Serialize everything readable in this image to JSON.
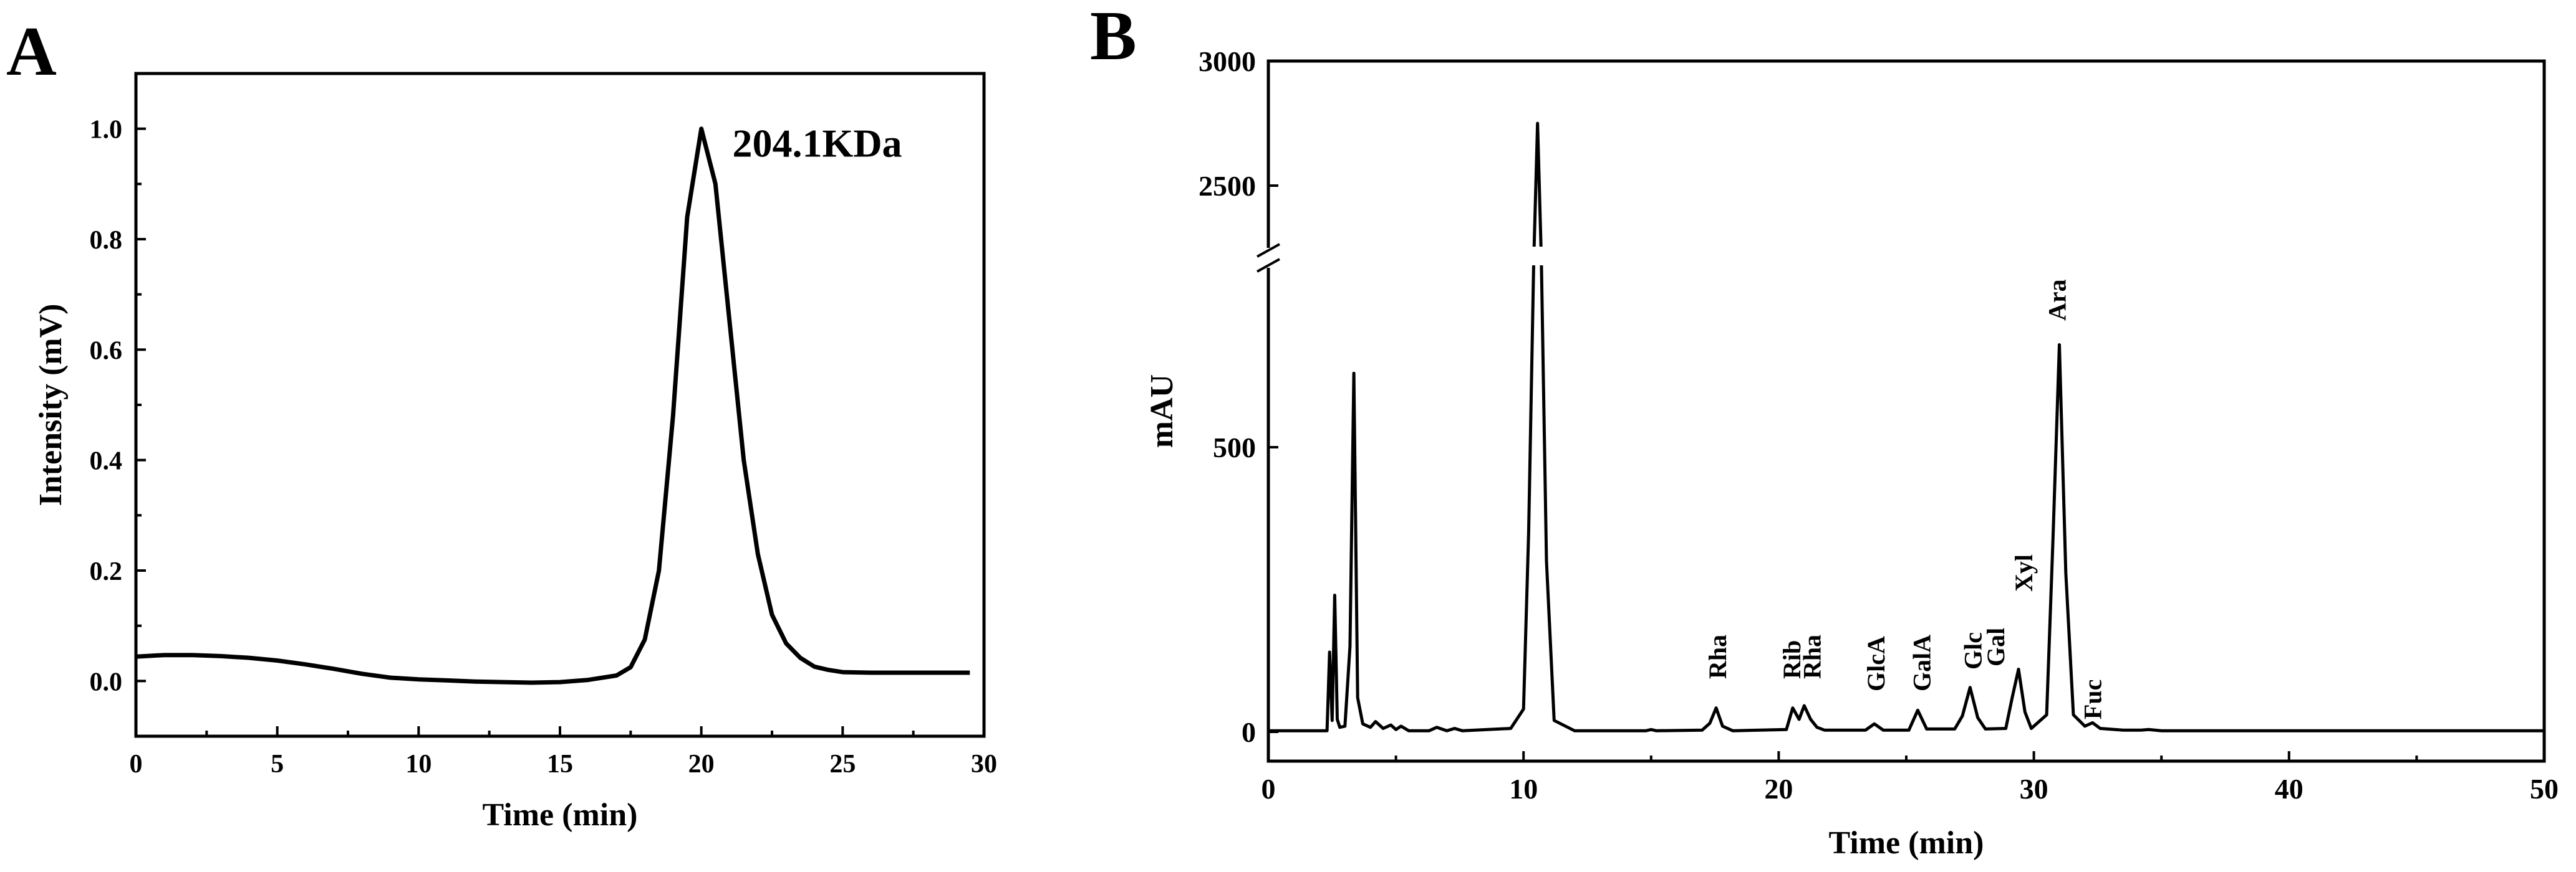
{
  "panels": {
    "a": {
      "letter": "A"
    },
    "b": {
      "letter": "B"
    }
  },
  "chart_data": [
    {
      "type": "line",
      "panel": "A",
      "title": "",
      "xlabel": "Time (min)",
      "ylabel": "Intensity (mV)",
      "xlim": [
        0,
        30
      ],
      "ylim": [
        -0.1,
        1.1
      ],
      "xticks": [
        0,
        5,
        10,
        15,
        20,
        25,
        30
      ],
      "yticks": [
        0.0,
        0.2,
        0.4,
        0.6,
        0.8,
        1.0
      ],
      "xtick_labels": [
        "0",
        "5",
        "10",
        "15",
        "20",
        "25",
        "30"
      ],
      "ytick_labels": [
        "0.0",
        "0.2",
        "0.4",
        "0.6",
        "0.8",
        "1.0"
      ],
      "annotation": {
        "text": "204.1KDa",
        "x": 20.0,
        "y": 1.0
      },
      "series": [
        {
          "x": [
            0,
            1,
            2,
            3,
            4,
            5,
            6,
            7,
            8,
            9,
            10,
            11,
            12,
            13,
            14,
            15,
            16,
            17,
            17.5,
            18,
            18.5,
            19,
            19.5,
            20,
            20.5,
            21,
            21.5,
            22,
            22.5,
            23,
            23.5,
            24,
            24.5,
            25,
            26,
            27,
            28,
            29,
            29.5
          ],
          "y": [
            0.044,
            0.047,
            0.047,
            0.045,
            0.042,
            0.037,
            0.03,
            0.022,
            0.013,
            0.006,
            0.003,
            0.001,
            -0.001,
            -0.002,
            -0.003,
            -0.002,
            0.002,
            0.01,
            0.025,
            0.075,
            0.2,
            0.48,
            0.84,
            1.0,
            0.9,
            0.65,
            0.4,
            0.23,
            0.12,
            0.068,
            0.042,
            0.026,
            0.02,
            0.016,
            0.015,
            0.015,
            0.015,
            0.015,
            0.015
          ]
        }
      ]
    },
    {
      "type": "line",
      "panel": "B",
      "title": "",
      "xlabel": "Time (min)",
      "ylabel": "mAU",
      "xlim": [
        0,
        50
      ],
      "xticks": [
        0,
        10,
        20,
        30,
        40,
        50
      ],
      "xtick_labels": [
        "0",
        "10",
        "20",
        "30",
        "40",
        "50"
      ],
      "yaxis_broken": true,
      "yaxis_break": [
        800,
        2000
      ],
      "yticks": [
        0,
        500,
        2500,
        3000
      ],
      "ytick_labels": [
        "0",
        "500",
        "2500",
        "3000"
      ],
      "series": [
        {
          "x": [
            0,
            2.3,
            2.4,
            2.5,
            2.6,
            2.7,
            2.8,
            3.0,
            3.2,
            3.35,
            3.5,
            3.7,
            4.0,
            4.2,
            4.5,
            4.8,
            5.0,
            5.2,
            5.5,
            6.3,
            6.6,
            7.0,
            7.3,
            7.6,
            9.5,
            10.0,
            10.2,
            10.4,
            10.55,
            10.7,
            10.9,
            11.2,
            12,
            14.8,
            15.0,
            15.2,
            17.0,
            17.3,
            17.55,
            17.8,
            18.2,
            20.3,
            20.55,
            20.8,
            21.0,
            21.25,
            21.5,
            21.8,
            23.4,
            23.75,
            24.1,
            25.1,
            25.45,
            25.8,
            26.9,
            27.2,
            27.5,
            27.8,
            28.1,
            28.9,
            29.15,
            29.4,
            29.65,
            29.9,
            30.5,
            30.75,
            31.0,
            31.25,
            31.55,
            32.0,
            32.3,
            32.6,
            33.5,
            34.2,
            34.5,
            35,
            50
          ],
          "y": [
            2,
            2,
            140,
            20,
            240,
            22,
            8,
            10,
            150,
            630,
            60,
            14,
            8,
            18,
            6,
            12,
            4,
            10,
            2,
            2,
            8,
            2,
            6,
            2,
            6,
            40,
            350,
            2200,
            2750,
            2200,
            300,
            20,
            2,
            2,
            4,
            2,
            3,
            15,
            42,
            10,
            2,
            4,
            42,
            22,
            46,
            22,
            8,
            3,
            3,
            14,
            3,
            3,
            38,
            5,
            5,
            28,
            78,
            25,
            5,
            6,
            60,
            110,
            35,
            6,
            30,
            340,
            680,
            280,
            30,
            10,
            16,
            6,
            3,
            3,
            4,
            2,
            2
          ]
        }
      ],
      "peak_labels": [
        {
          "text": "Rha",
          "x": 17.6
        },
        {
          "text": "Rib",
          "x": 20.5
        },
        {
          "text": "Rha",
          "x": 21.3
        },
        {
          "text": "GlcA",
          "x": 23.8
        },
        {
          "text": "GalA",
          "x": 25.6
        },
        {
          "text": "Glc",
          "x": 27.6
        },
        {
          "text": "Gal",
          "x": 28.5
        },
        {
          "text": "Xyl",
          "x": 29.6
        },
        {
          "text": "Ara",
          "x": 30.9
        },
        {
          "text": "Fuc",
          "x": 32.3
        }
      ]
    }
  ]
}
